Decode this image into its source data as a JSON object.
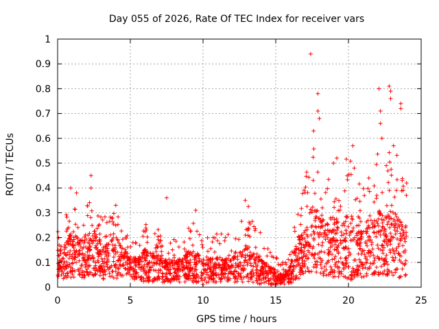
{
  "chart_data": {
    "type": "scatter",
    "title": "Day 055 of 2026, Rate Of TEC Index for receiver vars",
    "xlabel": "GPS time / hours",
    "ylabel": "ROTI / TECUs",
    "xlim": [
      0,
      25
    ],
    "ylim": [
      0,
      1
    ],
    "x_ticks": [
      "0",
      "5",
      "10",
      "15",
      "20",
      "25"
    ],
    "y_ticks": [
      "0",
      "0.1",
      "0.2",
      "0.3",
      "0.4",
      "0.5",
      "0.6",
      "0.7",
      "0.8",
      "0.9",
      "1"
    ],
    "grid": true,
    "marker": "+",
    "series": [
      {
        "name": "ROTI",
        "color": "#ff0000",
        "envelope": {
          "x": [
            0,
            0.5,
            1,
            1.5,
            2,
            2.5,
            3,
            3.5,
            4,
            4.5,
            5,
            5.5,
            6,
            6.5,
            7,
            7.5,
            8,
            8.5,
            9,
            9.5,
            10,
            10.5,
            11,
            11.5,
            12,
            12.5,
            13,
            13.5,
            14,
            14.5,
            15,
            15.5,
            16,
            16.5,
            17,
            17.5,
            18,
            18.5,
            19,
            19.5,
            20,
            20.5,
            21,
            21.5,
            22,
            22.5,
            23,
            23.5,
            24
          ],
          "y_low": [
            0.04,
            0.03,
            0.04,
            0.03,
            0.04,
            0.04,
            0.03,
            0.04,
            0.03,
            0.04,
            0.03,
            0.03,
            0.02,
            0.02,
            0.02,
            0.02,
            0.02,
            0.02,
            0.02,
            0.02,
            0.01,
            0.02,
            0.02,
            0.02,
            0.02,
            0.02,
            0.02,
            0.02,
            0.01,
            0.01,
            0.01,
            0.01,
            0.01,
            0.03,
            0.05,
            0.05,
            0.05,
            0.04,
            0.04,
            0.04,
            0.03,
            0.03,
            0.04,
            0.05,
            0.05,
            0.05,
            0.04,
            0.03,
            0.05
          ],
          "y_typ": [
            0.11,
            0.12,
            0.13,
            0.12,
            0.14,
            0.13,
            0.11,
            0.12,
            0.14,
            0.11,
            0.09,
            0.08,
            0.1,
            0.09,
            0.07,
            0.06,
            0.07,
            0.06,
            0.07,
            0.06,
            0.06,
            0.07,
            0.07,
            0.06,
            0.08,
            0.07,
            0.08,
            0.07,
            0.06,
            0.05,
            0.04,
            0.03,
            0.05,
            0.12,
            0.16,
            0.18,
            0.19,
            0.17,
            0.18,
            0.15,
            0.17,
            0.16,
            0.18,
            0.17,
            0.19,
            0.16,
            0.18,
            0.14,
            0.15
          ],
          "y_high": [
            0.28,
            0.3,
            0.4,
            0.35,
            0.32,
            0.44,
            0.28,
            0.29,
            0.32,
            0.26,
            0.22,
            0.18,
            0.26,
            0.21,
            0.24,
            0.2,
            0.22,
            0.2,
            0.28,
            0.3,
            0.22,
            0.2,
            0.24,
            0.2,
            0.26,
            0.27,
            0.35,
            0.26,
            0.22,
            0.15,
            0.14,
            0.1,
            0.16,
            0.33,
            0.41,
            0.62,
            0.5,
            0.43,
            0.52,
            0.42,
            0.56,
            0.48,
            0.4,
            0.47,
            0.55,
            0.52,
            0.6,
            0.52,
            0.42
          ]
        },
        "spikes": [
          [
            0.9,
            0.4
          ],
          [
            1.3,
            0.38
          ],
          [
            2.3,
            0.45
          ],
          [
            2.3,
            0.4
          ],
          [
            4.0,
            0.33
          ],
          [
            7.5,
            0.36
          ],
          [
            9.5,
            0.31
          ],
          [
            12.9,
            0.35
          ],
          [
            17.4,
            0.94
          ],
          [
            17.6,
            0.63
          ],
          [
            17.9,
            0.78
          ],
          [
            17.9,
            0.71
          ],
          [
            18.0,
            0.68
          ],
          [
            19.2,
            0.52
          ],
          [
            20.3,
            0.57
          ],
          [
            20.4,
            0.48
          ],
          [
            21.4,
            0.44
          ],
          [
            22.1,
            0.8
          ],
          [
            22.2,
            0.71
          ],
          [
            22.2,
            0.66
          ],
          [
            22.3,
            0.6
          ],
          [
            22.6,
            0.49
          ],
          [
            22.8,
            0.81
          ],
          [
            22.9,
            0.79
          ],
          [
            22.9,
            0.76
          ],
          [
            23.1,
            0.57
          ],
          [
            23.6,
            0.74
          ],
          [
            23.6,
            0.72
          ],
          [
            23.7,
            0.43
          ],
          [
            24.0,
            0.42
          ]
        ]
      }
    ]
  }
}
